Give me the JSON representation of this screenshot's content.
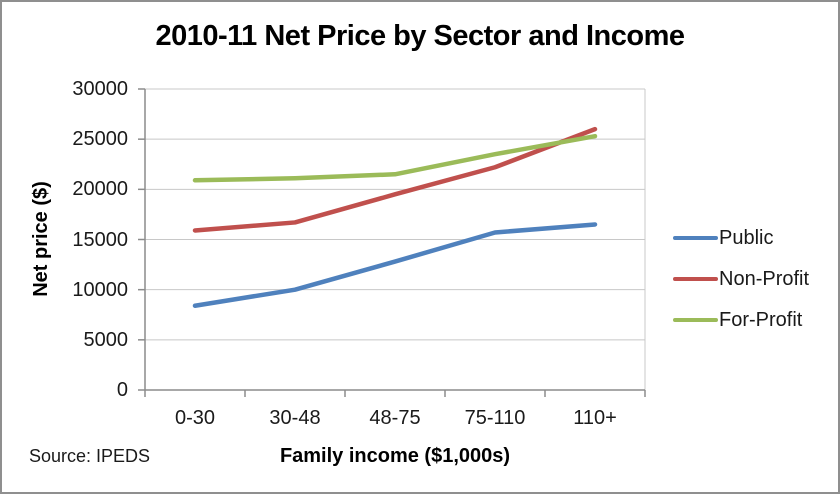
{
  "window": {
    "background_color": "#ffffff",
    "border_color": "#8f8f8f"
  },
  "chart_data": {
    "type": "line",
    "title": "2010-11 Net Price by Sector and Income",
    "xlabel": "Family income ($1,000s)",
    "ylabel": "Net price ($)",
    "categories": [
      "0-30",
      "30-48",
      "48-75",
      "75-110",
      "110+"
    ],
    "series": [
      {
        "name": "Public",
        "color": "#4F81BD",
        "values": [
          8400,
          10000,
          12800,
          15700,
          16500
        ]
      },
      {
        "name": "Non-Profit",
        "color": "#C0504D",
        "values": [
          15900,
          16700,
          19500,
          22200,
          26000
        ]
      },
      {
        "name": "For-Profit",
        "color": "#9BBB59",
        "values": [
          20900,
          21100,
          21500,
          23500,
          25300
        ]
      }
    ],
    "ylim": [
      0,
      30000
    ],
    "y_ticks": [
      0,
      5000,
      10000,
      15000,
      20000,
      25000,
      30000
    ],
    "grid": true,
    "legend_position": "right",
    "source_note": "Source: IPEDS",
    "axis_color": "#8c8c8c",
    "gridline_color": "#c8c8c8"
  }
}
